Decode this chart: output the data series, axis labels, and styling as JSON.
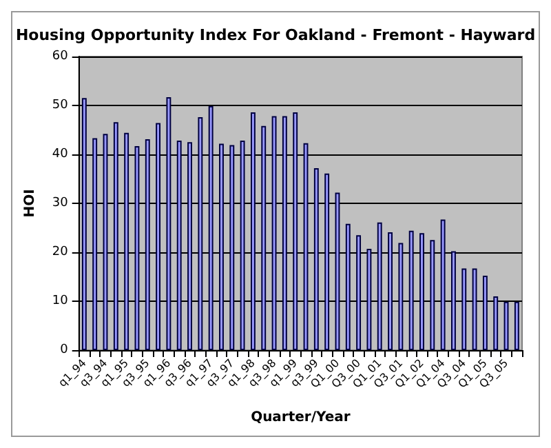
{
  "chart_data": {
    "type": "bar",
    "title": "Housing Opportunity Index For Oakland - Fremont - Hayward",
    "xlabel": "Quarter/Year",
    "ylabel": "HOI",
    "categories": [
      "q1_94",
      null,
      "q3_94",
      null,
      "q1_95",
      null,
      "q3_95",
      null,
      "q1_96",
      null,
      "q3_96",
      null,
      "q1_97",
      null,
      "q3_97",
      null,
      "q1_98",
      null,
      "q3_98",
      null,
      "q1_99",
      null,
      "q3_99",
      null,
      "Q1_00",
      null,
      "Q3_00",
      null,
      "Q1_01",
      null,
      "Q3_01",
      null,
      "Q1_02",
      null,
      "Q1_04",
      null,
      "Q3_04",
      null,
      "Q1_05",
      null,
      "Q3_05",
      null
    ],
    "values": [
      51.5,
      43.3,
      44.2,
      46.6,
      44.4,
      41.7,
      43.1,
      46.4,
      51.7,
      42.8,
      42.5,
      47.6,
      49.9,
      42.2,
      41.9,
      42.8,
      48.6,
      45.8,
      47.8,
      47.8,
      48.6,
      42.3,
      37.2,
      36.1,
      32.2,
      25.8,
      23.5,
      20.7,
      26.1,
      24.1,
      21.9,
      24.4,
      23.9,
      22.5,
      26.7,
      20.2,
      16.7,
      16.7,
      15.2,
      11.0,
      9.9,
      9.9
    ],
    "color": "#9999ff",
    "ylim": [
      0,
      60
    ],
    "yticks": [
      0,
      10,
      20,
      30,
      40,
      50,
      60
    ],
    "grid": "y"
  }
}
